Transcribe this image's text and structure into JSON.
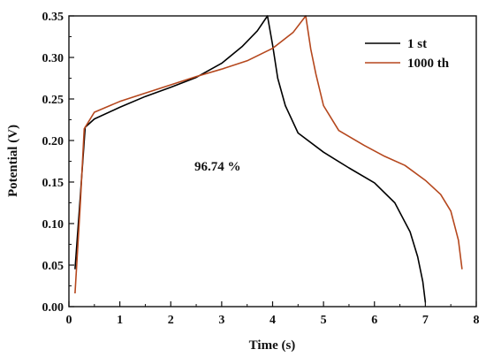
{
  "chart_data": {
    "type": "line",
    "xlabel": "Time (s)",
    "ylabel": "Potential (V)",
    "xlim": [
      0,
      8
    ],
    "ylim": [
      0.0,
      0.35
    ],
    "x_ticks": [
      "0",
      "1",
      "2",
      "3",
      "4",
      "5",
      "6",
      "7",
      "8"
    ],
    "y_ticks": [
      "0.00",
      "0.05",
      "0.10",
      "0.15",
      "0.20",
      "0.25",
      "0.30",
      "0.35"
    ],
    "grid": false,
    "legend_position": "top-right",
    "annotation": "96.74 %",
    "series": [
      {
        "name": "1 st",
        "color": "#000000",
        "x": [
          0.12,
          0.22,
          0.32,
          0.5,
          1.0,
          1.5,
          2.0,
          2.5,
          3.0,
          3.4,
          3.7,
          3.9,
          4.0,
          4.1,
          4.25,
          4.5,
          5.0,
          5.5,
          6.0,
          6.4,
          6.7,
          6.85,
          6.95,
          7.0
        ],
        "y": [
          0.045,
          0.13,
          0.216,
          0.226,
          0.24,
          0.253,
          0.264,
          0.276,
          0.293,
          0.313,
          0.332,
          0.35,
          0.315,
          0.275,
          0.242,
          0.209,
          0.186,
          0.167,
          0.149,
          0.125,
          0.09,
          0.06,
          0.03,
          0.005
        ]
      },
      {
        "name": "1000 th",
        "color": "#b5471d",
        "x": [
          0.12,
          0.22,
          0.3,
          0.5,
          1.0,
          1.5,
          2.0,
          2.5,
          3.0,
          3.5,
          4.0,
          4.4,
          4.65,
          4.75,
          4.85,
          5.0,
          5.3,
          5.8,
          6.2,
          6.6,
          7.0,
          7.3,
          7.5,
          7.65,
          7.72
        ],
        "y": [
          0.016,
          0.12,
          0.214,
          0.234,
          0.247,
          0.257,
          0.267,
          0.277,
          0.286,
          0.296,
          0.311,
          0.33,
          0.35,
          0.31,
          0.28,
          0.242,
          0.212,
          0.194,
          0.181,
          0.17,
          0.152,
          0.135,
          0.115,
          0.08,
          0.045
        ]
      }
    ]
  }
}
